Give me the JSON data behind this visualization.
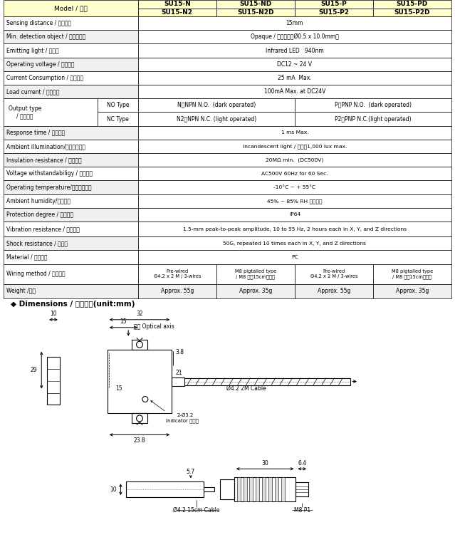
{
  "bg_color": "#ffffff",
  "header_bg": "#ffffcc",
  "border_color": "#000000",
  "col_headers_row1": [
    "SU15-N",
    "SU15-ND",
    "SU15-P",
    "SU15-PD"
  ],
  "col_headers_row2": [
    "SU15-N2",
    "SU15-N2D",
    "SU15-P2",
    "SU15-P2D"
  ],
  "model_label": "Model / 型號",
  "simple_rows": [
    [
      "Sensing distance / 檢出距離",
      "15mm"
    ],
    [
      "Min. detection object / 最小檢測物",
      "Opaque / 非透明體（Ø0.5 x 10.0mm）"
    ],
    [
      "Emitting light / 發光源",
      "Infrared LED   940nm"
    ],
    [
      "Operating voltage / 工作電壓",
      "DC12 ~ 24 V"
    ],
    [
      "Current Consumption / 消耗電流",
      "25 mA  Max."
    ],
    [
      "Load current / 負載電流",
      "100mA Max. at DC24V"
    ]
  ],
  "output_label": "Output type\n/ 輸出模式",
  "output_rows": [
    [
      "NO Type",
      "N：NPN N.O.  (dark operated)",
      "P：PNP N.O.  (dark operated)"
    ],
    [
      "NC Type",
      "N2：NPN N.C. (light operated)",
      "P2：PNP N.C.(light operated)"
    ]
  ],
  "simple_rows2": [
    [
      "Response time / 反應時間",
      "1 ms Max."
    ],
    [
      "Ambient illumination/使用環境光源",
      "Incandescent light / 白光：1,000 lux max."
    ],
    [
      "Insulation resistance / 雔離阻抗",
      "20MΩ min.  (DC500V)"
    ],
    [
      "Voltage withstandabiligy / 絕縣耆壓",
      "AC500V 60Hz for 60 Sec."
    ],
    [
      "Operating temperature/工作溫度範圍",
      "-10°C ~ + 55°C"
    ],
    [
      "Ambient humidity/濕度範圍",
      "45% ~ 85% RH 相對濕度"
    ],
    [
      "Protection degree / 防水等級",
      "IP64"
    ],
    [
      "Vibration resistance / 考震頻率",
      "1.5-mm peak-to-peak amplitude, 10 to 55 Hz, 2 hours each in X, Y, and Z directions"
    ],
    [
      "Shock resistance / 考震度",
      "50G, repeated 10 times each in X, Y, and Z directions"
    ],
    [
      "Material / 外觀材質",
      "PC"
    ]
  ],
  "wiring_label": "Wiring method / 出線方式",
  "wiring_vals": [
    "Pre-wired\nΘ4.2 x 2 M / 3-wires",
    "M8 pigtailed type\n/ M8 接頭15cm電線式",
    "Pre-wired\nΘ4.2 x 2 M / 3-wires",
    "M8 pigtailed type\n/ M8 接頭15cm電線式"
  ],
  "weight_label": "Weight /重量",
  "weight_vals": [
    "Approx. 55g",
    "Approx. 35g",
    "Approx. 55g",
    "Approx. 35g"
  ],
  "dim_title": "◆ Dimensions / 尺寸圖：(unit:mm)"
}
